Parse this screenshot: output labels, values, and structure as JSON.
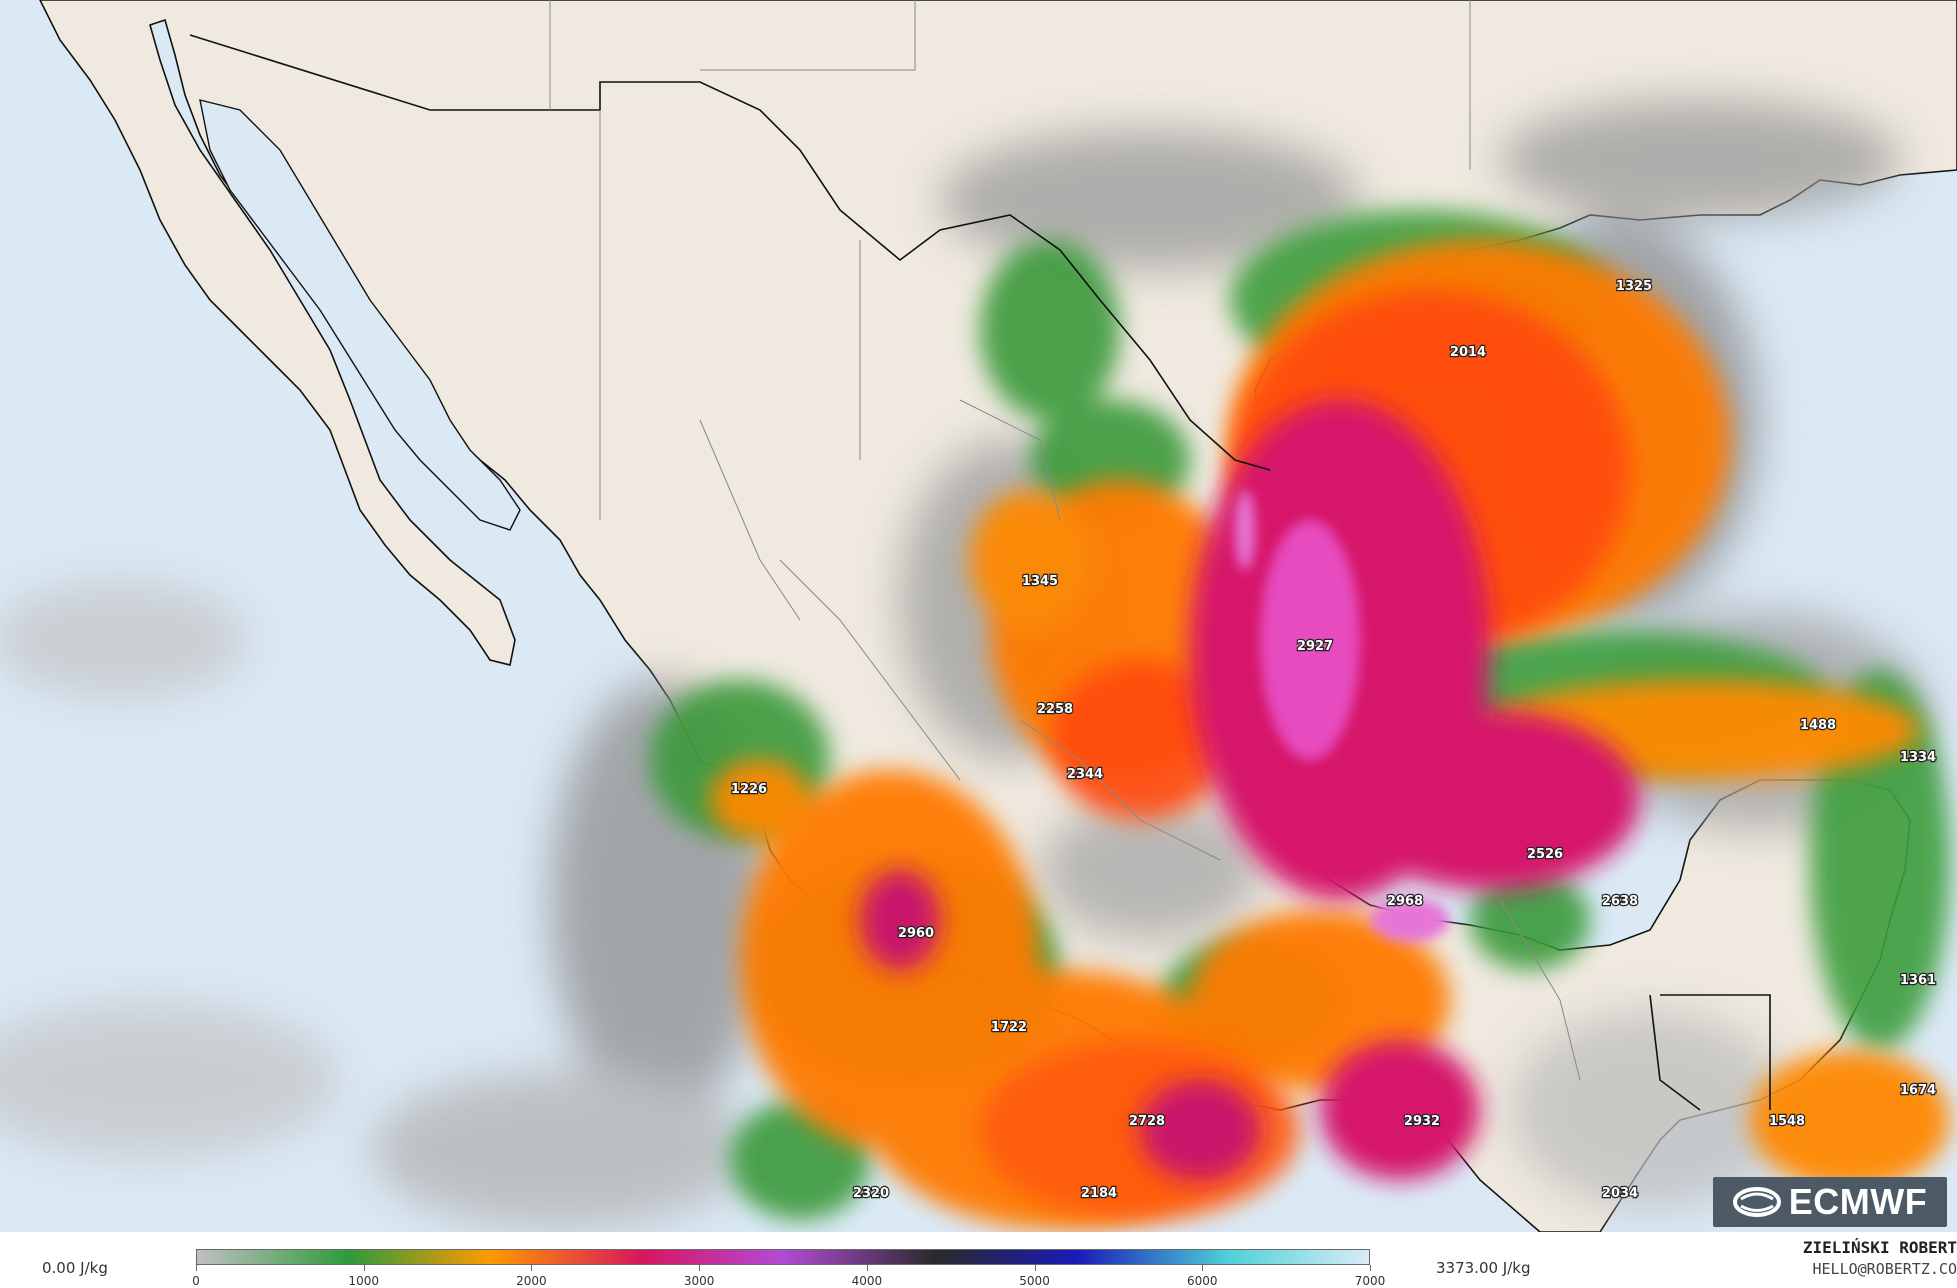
{
  "map": {
    "units": "J/kg",
    "min_label": "0.00 J/kg",
    "max_label": "3373.00 J/kg",
    "value_labels": [
      {
        "id": "1325",
        "text": "1325"
      },
      {
        "id": "2014",
        "text": "2014"
      },
      {
        "id": "1345",
        "text": "1345"
      },
      {
        "id": "2927",
        "text": "2927"
      },
      {
        "id": "2258",
        "text": "2258"
      },
      {
        "id": "1488",
        "text": "1488"
      },
      {
        "id": "2344",
        "text": "2344"
      },
      {
        "id": "1226",
        "text": "1226"
      },
      {
        "id": "1334",
        "text": "1334"
      },
      {
        "id": "2526",
        "text": "2526"
      },
      {
        "id": "2968",
        "text": "2968"
      },
      {
        "id": "2638",
        "text": "2638"
      },
      {
        "id": "2960",
        "text": "2960"
      },
      {
        "id": "1361",
        "text": "1361"
      },
      {
        "id": "1722",
        "text": "1722"
      },
      {
        "id": "1674",
        "text": "1674"
      },
      {
        "id": "2728",
        "text": "2728"
      },
      {
        "id": "2932",
        "text": "2932"
      },
      {
        "id": "1548",
        "text": "1548"
      },
      {
        "id": "2320",
        "text": "2320"
      },
      {
        "id": "2184",
        "text": "2184"
      },
      {
        "id": "2034",
        "text": "2034"
      }
    ]
  },
  "colorbar": {
    "ticks": [
      "0",
      "1000",
      "2000",
      "3000",
      "4000",
      "5000",
      "6000",
      "7000"
    ],
    "colors": [
      "#c0c0c0",
      "#2e9a3c",
      "#ff9a00",
      "#d6165e",
      "#b24bd6",
      "#2a2a2a",
      "#1a1ab8",
      "#4fd0d8",
      "#d8ecf6"
    ]
  },
  "credits": {
    "name": "ZIELIŃSKI ROBERT",
    "email": "HELLO@ROBERTZ.CO"
  },
  "logo": {
    "text": "ECMWF",
    "icon": "ecmwf-logo-icon"
  },
  "colors": {
    "ocean": "#dbe9f5",
    "land": "#efe9df",
    "grey_low": "#a9a9a9",
    "green": "#3a9a3a",
    "orange": "#ff7a00",
    "red_orange": "#ff4a10",
    "magenta": "#d6126a",
    "pink": "#e64cc0"
  }
}
